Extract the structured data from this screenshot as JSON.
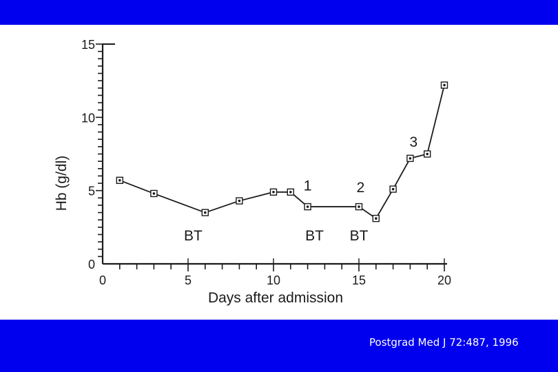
{
  "colors": {
    "background": "#0000ee",
    "panel": "#ffffff",
    "ink": "#1a1a1a",
    "citation": "#ffffff"
  },
  "citation": "Postgrad Med J 72:487, 1996",
  "chart_data": {
    "type": "line",
    "title": "",
    "xlabel": "Days after admission",
    "ylabel": "Hb (g/dl)",
    "xlim": [
      0,
      20
    ],
    "ylim": [
      0,
      15
    ],
    "x_ticks": [
      0,
      5,
      10,
      15,
      20
    ],
    "x_tick_labels": [
      "0",
      "5",
      "10",
      "15",
      "20"
    ],
    "y_ticks": [
      0,
      5,
      10,
      15
    ],
    "y_tick_labels": [
      "0",
      "5",
      "10",
      "15"
    ],
    "x_minor_step": 1,
    "y_minor_step": 0.5,
    "grid": false,
    "marker": "square-dot",
    "series": [
      {
        "x": [
          1,
          3,
          6,
          8,
          10,
          11,
          12,
          15,
          16,
          17,
          18,
          19,
          20
        ],
        "y": [
          5.7,
          4.8,
          3.5,
          4.3,
          4.9,
          4.9,
          3.9,
          3.9,
          3.1,
          5.1,
          7.2,
          7.5,
          12.2
        ]
      }
    ],
    "annotations": [
      {
        "text": "BT",
        "x": 5.3,
        "y": 1.6
      },
      {
        "text": "BT",
        "x": 12.4,
        "y": 1.6
      },
      {
        "text": "BT",
        "x": 15.0,
        "y": 1.6
      },
      {
        "text": "1",
        "x": 12.0,
        "y": 5.0
      },
      {
        "text": "2",
        "x": 15.1,
        "y": 4.9
      },
      {
        "text": "3",
        "x": 18.2,
        "y": 8.0
      }
    ]
  }
}
